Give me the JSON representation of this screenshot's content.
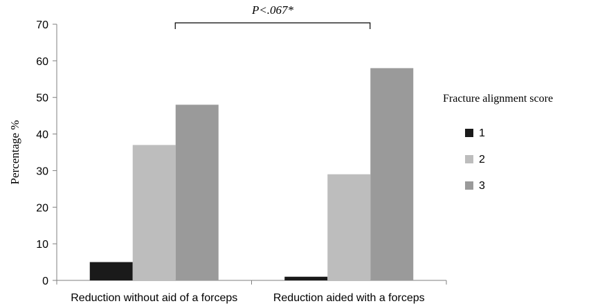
{
  "chart_data": {
    "type": "bar",
    "categories": [
      "Reduction without aid of a forceps",
      "Reduction aided with a forceps"
    ],
    "series": [
      {
        "name": "1",
        "color": "#1a1a1a",
        "values": [
          5,
          1
        ]
      },
      {
        "name": "2",
        "color": "#bdbdbd",
        "values": [
          37,
          29
        ]
      },
      {
        "name": "3",
        "color": "#9a9a9a",
        "values": [
          48,
          58
        ]
      }
    ],
    "ylabel": "Percentage  %",
    "ylim": [
      0,
      70
    ],
    "yticks": [
      0,
      10,
      20,
      30,
      40,
      50,
      60,
      70
    ],
    "legend_title": "Fracture alignment score",
    "legend_position": "right",
    "grid": false,
    "annotation": "P<.067*"
  }
}
